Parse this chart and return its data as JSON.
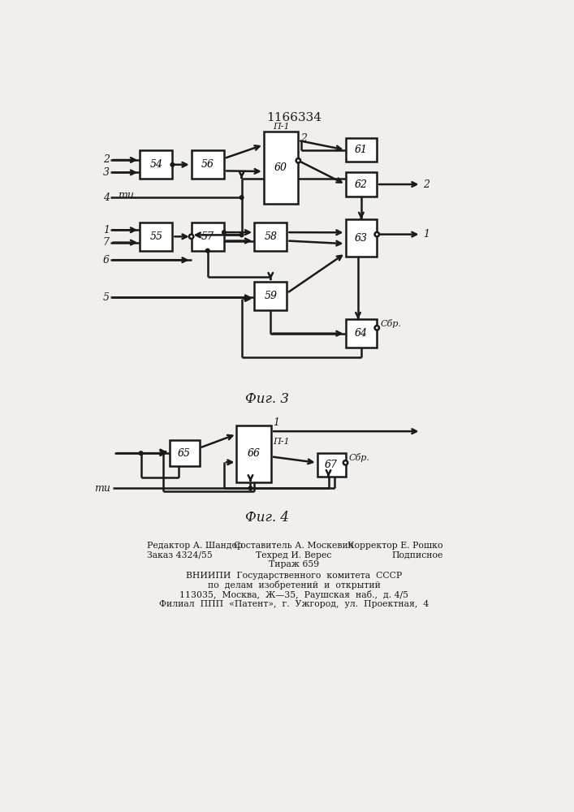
{
  "title": "1166334",
  "fig3_caption": "Фиг. 3",
  "fig4_caption": "Фиг. 4",
  "background_color": "#f0efeb",
  "line_color": "#1a1a1a",
  "footer_left1": "Редактор А. Шандор",
  "footer_left2": "Заказ 4324/55",
  "footer_center1": "Составитель А. Москевич",
  "footer_center2": "Техред И. Верес",
  "footer_center3": "Тираж 659",
  "footer_right1": "Корректор Е. Рошко",
  "footer_right2": "Подписное",
  "footer_line4": "ВНИИПИ  Государственного  комитета  СССР",
  "footer_line5": "по  делам  изобретений  и  открытий",
  "footer_line6": "113035,  Москва,  Ж—35,  Раушская  наб.,  д. 4/5",
  "footer_line7": "Филиал  ППП  «Патент»,  г.  Ужгород,  ул.  Проектная,  4"
}
